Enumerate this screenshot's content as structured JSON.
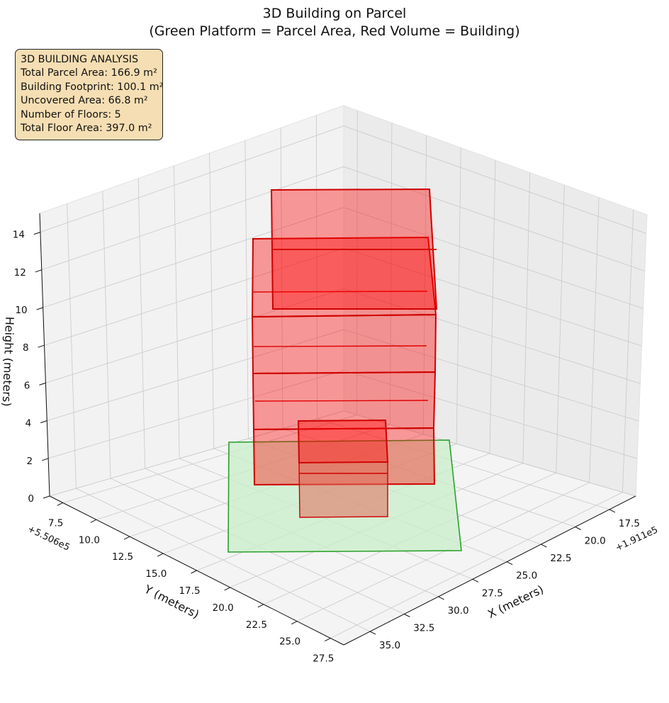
{
  "title_line1": "3D Building on Parcel",
  "title_line2": "(Green Platform = Parcel Area, Red Volume = Building)",
  "info_box": {
    "heading": "3D BUILDING ANALYSIS",
    "total_parcel_area": "Total Parcel Area: 166.9 m²",
    "building_footprint": "Building Footprint: 100.1 m²",
    "uncovered_area": "Uncovered Area: 66.8 m²",
    "number_of_floors": "Number of Floors: 5",
    "total_floor_area": "Total Floor Area: 397.0 m²",
    "background_color": "#f5deb3"
  },
  "chart_data": {
    "type": "3d-box",
    "title": "3D Building on Parcel\n(Green Platform = Parcel Area, Red Volume = Building)",
    "x_label": "X (meters)",
    "y_label": "Y (meters)",
    "z_label": "Height (meters)",
    "x_offset": "+1.911e5",
    "y_offset": "+5.506e5",
    "x_ticks": [
      "17.5",
      "20.0",
      "22.5",
      "25.0",
      "27.5",
      "30.0",
      "32.5",
      "35.0"
    ],
    "y_ticks": [
      "7.5",
      "10.0",
      "12.5",
      "15.0",
      "17.5",
      "20.0",
      "22.5",
      "25.0",
      "27.5"
    ],
    "z_ticks": [
      "0",
      "2",
      "4",
      "6",
      "8",
      "10",
      "12",
      "14"
    ],
    "z_range": [
      0,
      15
    ],
    "parcel": {
      "color": "#2ca02c",
      "fill": "#c9efc9",
      "z": 0
    },
    "building_boxes": [
      {
        "name": "floor-1",
        "z_range": [
          0,
          3
        ]
      },
      {
        "name": "floor-2",
        "z_range": [
          3,
          6
        ]
      },
      {
        "name": "floor-3",
        "z_range": [
          6,
          9
        ]
      },
      {
        "name": "floor-4",
        "z_range": [
          9,
          12
        ]
      },
      {
        "name": "floor-5",
        "z_range": [
          12,
          15
        ]
      }
    ],
    "building_color": "#ff0000",
    "grid": true
  }
}
